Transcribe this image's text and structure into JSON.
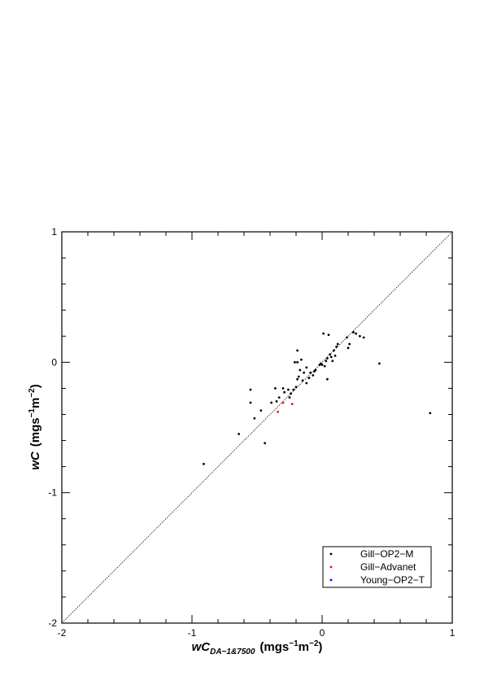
{
  "chart_data": {
    "type": "scatter",
    "xlabel": {
      "main": "wC",
      "sub": "DA−1&7500",
      "unit": [
        "(mgs",
        "−1",
        "m",
        "−2",
        ")"
      ]
    },
    "ylabel": {
      "main": "wC",
      "unit": [
        "(mgs",
        "−1",
        "m",
        "−2",
        ")"
      ]
    },
    "xlim": [
      -2,
      1
    ],
    "ylim": [
      -2,
      1
    ],
    "xticks": [
      -2,
      -1,
      0,
      1
    ],
    "yticks": [
      -2,
      -1,
      0,
      1
    ],
    "minor_divisions": 5,
    "diagonal": true,
    "legend": "lower right",
    "series": [
      {
        "name": "Gill−OP2−M",
        "color": "#000000",
        "x": [
          -0.91,
          -0.64,
          -0.55,
          -0.55,
          -0.52,
          -0.47,
          -0.44,
          -0.39,
          -0.36,
          -0.35,
          -0.33,
          -0.3,
          -0.29,
          -0.26,
          -0.25,
          -0.24,
          -0.22,
          -0.21,
          -0.2,
          -0.19,
          -0.19,
          -0.19,
          -0.18,
          -0.17,
          -0.16,
          -0.15,
          -0.14,
          -0.12,
          -0.12,
          -0.1,
          -0.09,
          -0.07,
          -0.06,
          -0.05,
          -0.02,
          -0.01,
          0.0,
          0.01,
          0.02,
          0.03,
          0.04,
          0.05,
          0.04,
          0.06,
          0.07,
          0.08,
          0.09,
          0.1,
          0.11,
          0.12,
          0.19,
          0.2,
          0.21,
          0.24,
          0.26,
          0.29,
          0.32,
          0.44,
          0.83
        ],
        "values": [
          -0.78,
          -0.55,
          -0.21,
          -0.31,
          -0.43,
          -0.37,
          -0.62,
          -0.31,
          -0.2,
          -0.3,
          -0.27,
          -0.2,
          -0.23,
          -0.21,
          -0.27,
          -0.24,
          -0.21,
          0.0,
          -0.19,
          0.0,
          0.09,
          -0.13,
          -0.11,
          -0.06,
          0.02,
          -0.14,
          -0.08,
          -0.16,
          -0.04,
          -0.12,
          -0.08,
          -0.1,
          -0.07,
          -0.06,
          -0.02,
          -0.01,
          -0.02,
          0.22,
          -0.03,
          0.01,
          0.03,
          0.21,
          -0.13,
          0.06,
          0.04,
          0.01,
          0.09,
          0.05,
          0.12,
          0.14,
          0.19,
          0.11,
          0.14,
          0.23,
          0.22,
          0.2,
          0.19,
          -0.01,
          -0.39
        ]
      },
      {
        "name": "Gill−Advanet",
        "color": "#ff0000",
        "x": [
          -0.34,
          -0.3,
          -0.23
        ],
        "values": [
          -0.38,
          -0.31,
          -0.32
        ]
      },
      {
        "name": "Young−OP2−T",
        "color": "#0000ff",
        "x": [],
        "values": []
      }
    ]
  }
}
